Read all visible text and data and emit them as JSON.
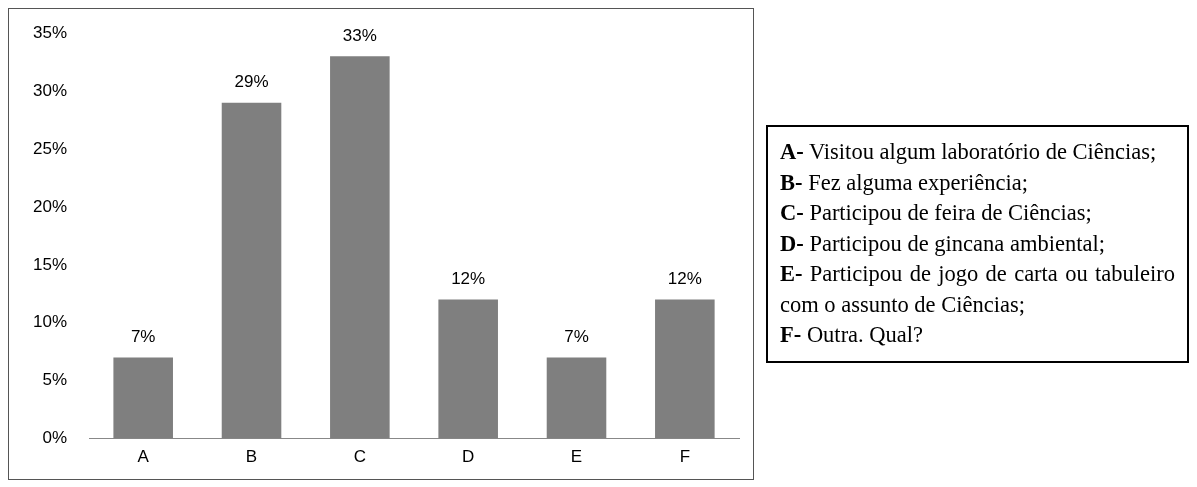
{
  "chart_data": {
    "type": "bar",
    "categories": [
      "A",
      "B",
      "C",
      "D",
      "E",
      "F"
    ],
    "values": [
      7,
      29,
      33,
      12,
      7,
      12
    ],
    "color": "#7f7f7f",
    "value_labels": [
      "7%",
      "29%",
      "33%",
      "12%",
      "7%",
      "12%"
    ],
    "ylim": [
      0,
      35
    ],
    "yticks": [
      {
        "value": 0,
        "label": "0%"
      },
      {
        "value": 5,
        "label": "5%"
      },
      {
        "value": 10,
        "label": "10%"
      },
      {
        "value": 15,
        "label": "15%"
      },
      {
        "value": 20,
        "label": "20%"
      },
      {
        "value": 25,
        "label": "25%"
      },
      {
        "value": 30,
        "label": "30%"
      },
      {
        "value": 35,
        "label": "35%"
      }
    ],
    "grid": false,
    "legend": false,
    "annotations": [
      "A- Visitou algum laboratório de Ciências;",
      "B- Fez alguma experiência;",
      "C- Participou de feira de Ciências;",
      "D- Participou de gincana ambiental;",
      "E- Participou de jogo de carta ou tabuleiro com o assunto de Ciências;",
      "F- Outra. Qual?"
    ]
  }
}
